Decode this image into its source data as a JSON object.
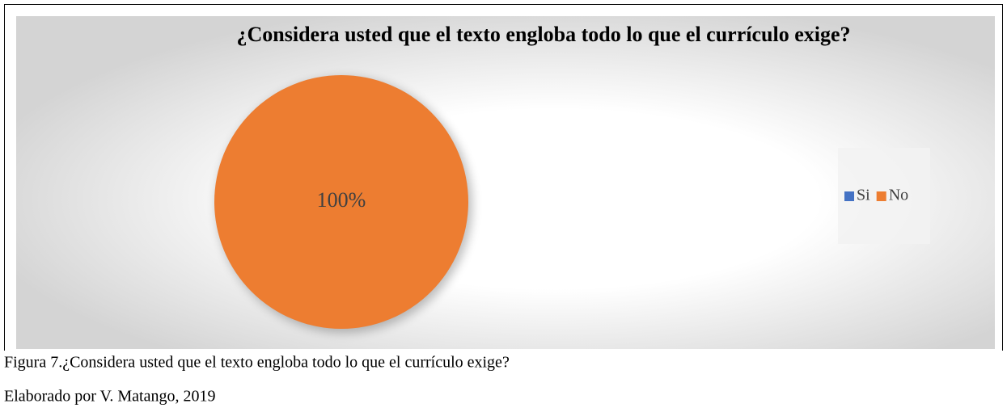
{
  "chart_data": {
    "type": "pie",
    "title": "¿Considera usted que el texto engloba todo lo que el currículo exige?",
    "categories": [
      "Si",
      "No"
    ],
    "values": [
      0,
      100
    ],
    "value_labels": [
      null,
      "100%"
    ],
    "colors": [
      "#4472c4",
      "#ed7d31"
    ],
    "legend": "right"
  },
  "caption": {
    "figure": "Figura  7.¿Considera usted que el texto engloba todo lo que el currículo exige?",
    "credit": "Elaborado por V. Matango, 2019"
  }
}
